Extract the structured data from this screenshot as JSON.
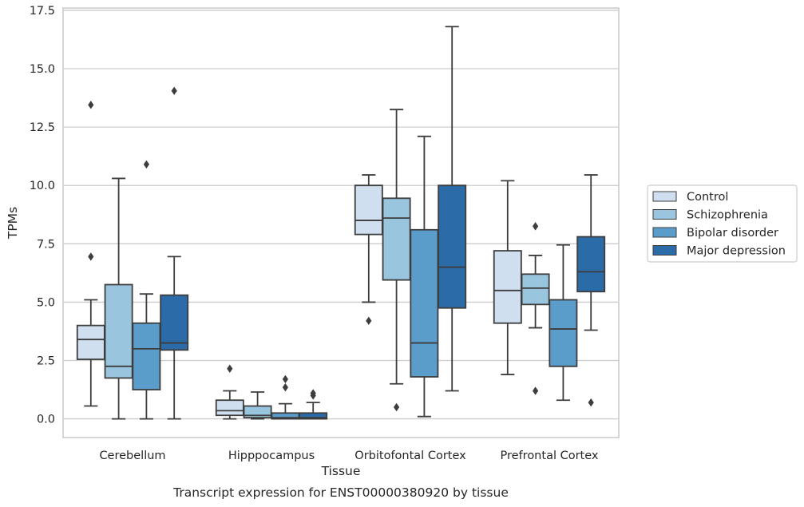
{
  "chart_data": {
    "type": "boxplot",
    "title": "Transcript expression for ENST00000380920 by tissue",
    "xlabel": "Tissue",
    "ylabel": "TPMs",
    "ylim": [
      -0.8,
      17.6
    ],
    "yticks": [
      "0.0",
      "2.5",
      "5.0",
      "7.5",
      "10.0",
      "12.5",
      "15.0",
      "17.5"
    ],
    "ytick_values": [
      0,
      2.5,
      5,
      7.5,
      10,
      12.5,
      15,
      17.5
    ],
    "grid": true,
    "legend_position": "right",
    "categories": [
      "Cerebellum",
      "Hipppocampus",
      "Orbitofontal Cortex",
      "Prefrontal Cortex"
    ],
    "series": [
      {
        "name": "Control",
        "color": "#cfdff0",
        "boxes": [
          {
            "whislo": 0.55,
            "q1": 2.55,
            "med": 3.4,
            "q3": 4.0,
            "whishi": 5.1,
            "fliers": [
              6.95,
              13.45
            ]
          },
          {
            "whislo": 0.0,
            "q1": 0.15,
            "med": 0.35,
            "q3": 0.8,
            "whishi": 1.2,
            "fliers": [
              2.15
            ]
          },
          {
            "whislo": 5.0,
            "q1": 7.9,
            "med": 8.5,
            "q3": 10.0,
            "whishi": 10.45,
            "fliers": [
              4.2
            ]
          },
          {
            "whislo": 1.9,
            "q1": 4.1,
            "med": 5.5,
            "q3": 7.2,
            "whishi": 10.2,
            "fliers": []
          }
        ]
      },
      {
        "name": "Schizophrenia",
        "color": "#9ac5de",
        "boxes": [
          {
            "whislo": 0.0,
            "q1": 1.75,
            "med": 2.25,
            "q3": 5.75,
            "whishi": 10.3,
            "fliers": []
          },
          {
            "whislo": 0.0,
            "q1": 0.05,
            "med": 0.15,
            "q3": 0.55,
            "whishi": 1.15,
            "fliers": []
          },
          {
            "whislo": 1.5,
            "q1": 5.95,
            "med": 8.6,
            "q3": 9.45,
            "whishi": 13.25,
            "fliers": [
              0.5
            ]
          },
          {
            "whislo": 3.9,
            "q1": 4.9,
            "med": 5.6,
            "q3": 6.2,
            "whishi": 7.0,
            "fliers": [
              8.25,
              1.2
            ]
          }
        ]
      },
      {
        "name": "Bipolar disorder",
        "color": "#5a9dcb",
        "boxes": [
          {
            "whislo": 0.0,
            "q1": 1.25,
            "med": 3.0,
            "q3": 4.1,
            "whishi": 5.35,
            "fliers": [
              10.9
            ]
          },
          {
            "whislo": 0.0,
            "q1": 0.0,
            "med": 0.05,
            "q3": 0.25,
            "whishi": 0.65,
            "fliers": [
              1.35,
              1.7
            ]
          },
          {
            "whislo": 0.1,
            "q1": 1.8,
            "med": 3.25,
            "q3": 8.1,
            "whishi": 12.1,
            "fliers": []
          },
          {
            "whislo": 0.8,
            "q1": 2.25,
            "med": 3.85,
            "q3": 5.1,
            "whishi": 7.45,
            "fliers": []
          }
        ]
      },
      {
        "name": "Major depression",
        "color": "#2b6ba8",
        "boxes": [
          {
            "whislo": 0.0,
            "q1": 2.95,
            "med": 3.25,
            "q3": 5.3,
            "whishi": 6.95,
            "fliers": [
              14.05
            ]
          },
          {
            "whislo": 0.0,
            "q1": 0.0,
            "med": 0.05,
            "q3": 0.25,
            "whishi": 0.7,
            "fliers": [
              1.0,
              1.1
            ]
          },
          {
            "whislo": 1.2,
            "q1": 4.75,
            "med": 6.5,
            "q3": 10.0,
            "whishi": 16.8,
            "fliers": []
          },
          {
            "whislo": 3.8,
            "q1": 5.45,
            "med": 6.3,
            "q3": 7.8,
            "whishi": 10.45,
            "fliers": [
              0.7
            ]
          }
        ]
      }
    ]
  }
}
